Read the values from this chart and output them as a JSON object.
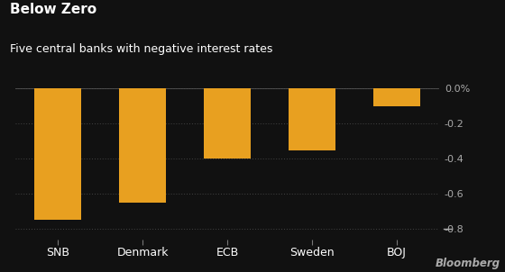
{
  "categories": [
    "SNB",
    "Denmark",
    "ECB",
    "Sweden",
    "BOJ"
  ],
  "values": [
    -0.75,
    -0.65,
    -0.4,
    -0.35,
    -0.1
  ],
  "bar_color": "#E8A020",
  "background_color": "#111111",
  "text_color": "#ffffff",
  "title": "Below Zero",
  "subtitle": "Five central banks with negative interest rates",
  "title_fontsize": 11,
  "subtitle_fontsize": 9,
  "ytick_color": "#aaaaaa",
  "yticks": [
    0.0,
    -0.2,
    -0.4,
    -0.6,
    -0.8
  ],
  "ytick_labels": [
    "0.0%",
    "-0.2",
    "-0.4",
    "-0.6",
    "-0.8"
  ],
  "ylim": [
    -0.86,
    0.04
  ],
  "grid_color": "#444444",
  "bloomberg_color": "#aaaaaa",
  "bloomberg_text": "Bloomberg",
  "bar_width": 0.55
}
